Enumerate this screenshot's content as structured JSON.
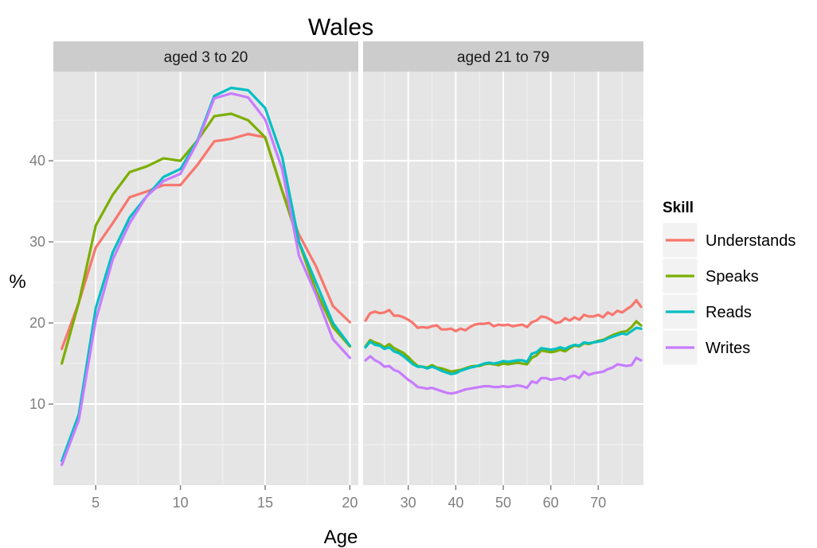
{
  "chart_data": {
    "type": "line",
    "title": "Wales",
    "xlabel": "Age",
    "ylabel": "%",
    "ylim": [
      0,
      51
    ],
    "yticks": [
      10,
      20,
      30,
      40
    ],
    "grid": true,
    "legend": {
      "title": "Skill",
      "position": "right",
      "entries": [
        "Understands",
        "Speaks",
        "Reads",
        "Writes"
      ]
    },
    "colors": {
      "Understands": "#F8766D",
      "Speaks": "#7CAE00",
      "Reads": "#00BFC4",
      "Writes": "#C77CFF",
      "panel_bg": "#E5E5E5",
      "strip_bg": "#CCCCCC",
      "grid": "#FFFFFF",
      "tick_text": "#7F7F7F"
    },
    "panels": [
      {
        "label": "aged 3 to 20",
        "xlim": [
          2.5,
          20.5
        ],
        "xticks": [
          5,
          10,
          15,
          20
        ],
        "series": [
          {
            "name": "Understands",
            "x": [
              3,
              4,
              5,
              6,
              7,
              8,
              9,
              10,
              11,
              12,
              13,
              14,
              15,
              16,
              17,
              18,
              19,
              20
            ],
            "y": [
              16.8,
              22.5,
              29.3,
              32.3,
              35.5,
              36.2,
              37.0,
              37.0,
              39.5,
              42.4,
              42.7,
              43.3,
              42.9,
              36.3,
              30.9,
              27.0,
              22.1,
              20.1
            ]
          },
          {
            "name": "Speaks",
            "x": [
              3,
              4,
              5,
              6,
              7,
              8,
              9,
              10,
              11,
              12,
              13,
              14,
              15,
              16,
              17,
              18,
              19,
              20
            ],
            "y": [
              15.0,
              22.5,
              32.0,
              35.8,
              38.6,
              39.3,
              40.3,
              40.0,
              42.5,
              45.5,
              45.8,
              45.0,
              42.9,
              36.3,
              29.9,
              24.0,
              19.5,
              17.1
            ]
          },
          {
            "name": "Reads",
            "x": [
              3,
              4,
              5,
              6,
              7,
              8,
              9,
              10,
              11,
              12,
              13,
              14,
              15,
              16,
              17,
              18,
              19,
              20
            ],
            "y": [
              3.0,
              8.7,
              21.8,
              28.7,
              33.0,
              35.6,
              38.0,
              39.0,
              42.5,
              48.0,
              49.0,
              48.7,
              46.5,
              40.5,
              30.0,
              25.0,
              20.0,
              17.2
            ]
          },
          {
            "name": "Writes",
            "x": [
              3,
              4,
              5,
              6,
              7,
              8,
              9,
              10,
              11,
              12,
              13,
              14,
              15,
              16,
              17,
              18,
              19,
              20
            ],
            "y": [
              2.5,
              8.0,
              20.3,
              27.8,
              32.3,
              35.6,
              37.5,
              38.4,
              42.3,
              47.7,
              48.3,
              47.8,
              45.1,
              39.0,
              28.3,
              23.5,
              18.0,
              15.7
            ]
          }
        ]
      },
      {
        "label": "aged 21 to 79",
        "xlim": [
          20.5,
          79.5
        ],
        "xticks": [
          30,
          40,
          50,
          60,
          70
        ],
        "series": [
          {
            "name": "Understands",
            "x": [
              21,
              22,
              23,
              24,
              25,
              26,
              27,
              28,
              29,
              30,
              31,
              32,
              33,
              34,
              35,
              36,
              37,
              38,
              39,
              40,
              41,
              42,
              43,
              44,
              45,
              46,
              47,
              48,
              49,
              50,
              51,
              52,
              53,
              54,
              55,
              56,
              57,
              58,
              59,
              60,
              61,
              62,
              63,
              64,
              65,
              66,
              67,
              68,
              69,
              70,
              71,
              72,
              73,
              74,
              75,
              76,
              77,
              78,
              79
            ],
            "y": [
              20.3,
              21.2,
              21.4,
              21.2,
              21.3,
              21.6,
              20.9,
              20.9,
              20.7,
              20.4,
              20.0,
              19.4,
              19.5,
              19.4,
              19.6,
              19.7,
              19.2,
              19.2,
              19.3,
              19.0,
              19.3,
              19.1,
              19.5,
              19.8,
              19.9,
              19.9,
              20.0,
              19.6,
              19.8,
              19.7,
              19.8,
              19.6,
              19.7,
              19.8,
              19.5,
              20.1,
              20.3,
              20.8,
              20.7,
              20.4,
              20.0,
              20.1,
              20.6,
              20.3,
              20.7,
              20.4,
              21.0,
              20.8,
              20.8,
              21.0,
              20.7,
              21.3,
              21.0,
              21.5,
              21.3,
              21.7,
              22.1,
              22.8,
              22.0
            ]
          },
          {
            "name": "Speaks",
            "x": [
              21,
              22,
              23,
              24,
              25,
              26,
              27,
              28,
              29,
              30,
              31,
              32,
              33,
              34,
              35,
              36,
              37,
              38,
              39,
              40,
              41,
              42,
              43,
              44,
              45,
              46,
              47,
              48,
              49,
              50,
              51,
              52,
              53,
              54,
              55,
              56,
              57,
              58,
              59,
              60,
              61,
              62,
              63,
              64,
              65,
              66,
              67,
              68,
              69,
              70,
              71,
              72,
              73,
              74,
              75,
              76,
              77,
              78,
              79
            ],
            "y": [
              17.1,
              17.9,
              17.6,
              17.4,
              17.0,
              17.4,
              16.9,
              16.6,
              16.3,
              15.8,
              15.2,
              14.7,
              14.6,
              14.5,
              14.8,
              14.5,
              14.4,
              14.2,
              14.0,
              14.1,
              14.2,
              14.4,
              14.6,
              14.7,
              14.7,
              14.9,
              15.0,
              14.9,
              14.8,
              15.0,
              14.9,
              15.0,
              15.1,
              15.0,
              14.9,
              15.7,
              16.0,
              16.6,
              16.5,
              16.4,
              16.5,
              16.7,
              16.5,
              16.9,
              17.2,
              17.1,
              17.5,
              17.4,
              17.6,
              17.8,
              17.9,
              18.2,
              18.5,
              18.7,
              18.9,
              19.0,
              19.5,
              20.2,
              19.7
            ]
          },
          {
            "name": "Reads",
            "x": [
              21,
              22,
              23,
              24,
              25,
              26,
              27,
              28,
              29,
              30,
              31,
              32,
              33,
              34,
              35,
              36,
              37,
              38,
              39,
              40,
              41,
              42,
              43,
              44,
              45,
              46,
              47,
              48,
              49,
              50,
              51,
              52,
              53,
              54,
              55,
              56,
              57,
              58,
              59,
              60,
              61,
              62,
              63,
              64,
              65,
              66,
              67,
              68,
              69,
              70,
              71,
              72,
              73,
              74,
              75,
              76,
              77,
              78,
              79
            ],
            "y": [
              17.0,
              17.7,
              17.3,
              17.2,
              16.8,
              17.0,
              16.5,
              16.3,
              15.9,
              15.4,
              14.9,
              14.6,
              14.6,
              14.4,
              14.6,
              14.4,
              14.1,
              13.9,
              13.7,
              13.8,
              14.1,
              14.3,
              14.5,
              14.6,
              14.8,
              15.0,
              15.1,
              15.0,
              15.1,
              15.3,
              15.2,
              15.3,
              15.4,
              15.4,
              15.2,
              16.2,
              16.4,
              16.9,
              16.8,
              16.7,
              16.8,
              17.0,
              16.8,
              17.1,
              17.3,
              17.2,
              17.6,
              17.5,
              17.6,
              17.7,
              17.8,
              18.1,
              18.3,
              18.5,
              18.7,
              18.6,
              19.0,
              19.4,
              19.3
            ]
          },
          {
            "name": "Writes",
            "x": [
              21,
              22,
              23,
              24,
              25,
              26,
              27,
              28,
              29,
              30,
              31,
              32,
              33,
              34,
              35,
              36,
              37,
              38,
              39,
              40,
              41,
              42,
              43,
              44,
              45,
              46,
              47,
              48,
              49,
              50,
              51,
              52,
              53,
              54,
              55,
              56,
              57,
              58,
              59,
              60,
              61,
              62,
              63,
              64,
              65,
              66,
              67,
              68,
              69,
              70,
              71,
              72,
              73,
              74,
              75,
              76,
              77,
              78,
              79
            ],
            "y": [
              15.4,
              15.9,
              15.4,
              15.1,
              14.6,
              14.7,
              14.2,
              14.0,
              13.5,
              13.0,
              12.6,
              12.1,
              12.0,
              11.9,
              12.0,
              11.8,
              11.6,
              11.4,
              11.3,
              11.4,
              11.6,
              11.8,
              11.9,
              12.0,
              12.1,
              12.2,
              12.2,
              12.1,
              12.1,
              12.2,
              12.1,
              12.2,
              12.3,
              12.2,
              12.0,
              12.8,
              12.6,
              13.2,
              13.2,
              13.0,
              13.1,
              13.2,
              13.0,
              13.4,
              13.5,
              13.2,
              14.0,
              13.6,
              13.8,
              13.9,
              14.0,
              14.3,
              14.5,
              14.9,
              14.8,
              14.7,
              14.8,
              15.7,
              15.4
            ]
          }
        ]
      }
    ]
  }
}
